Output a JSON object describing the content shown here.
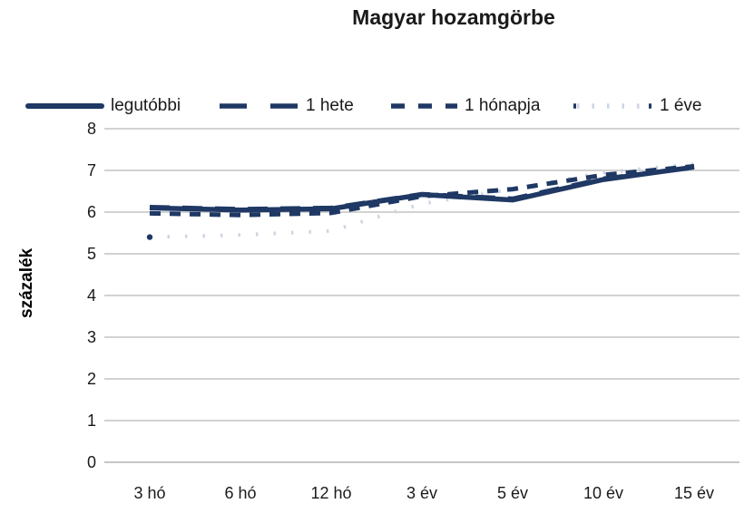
{
  "chart_data": {
    "type": "line",
    "title": "Magyar hozamgörbe",
    "ylabel": "százalék",
    "xlabel": "",
    "categories": [
      "3 hó",
      "6 hó",
      "12 hó",
      "3 év",
      "5 év",
      "10 év",
      "15 év"
    ],
    "y_ticks": [
      "8",
      "7",
      "6",
      "5",
      "4",
      "3",
      "2",
      "1",
      "0"
    ],
    "ylim": [
      0,
      8
    ],
    "grid": true,
    "legend_position": "top",
    "colors": {
      "line_navy": "#1f3864",
      "faint_line": "#cdd5e2",
      "gridline": "#d2d2d2",
      "axis_line": "#c6c6c6",
      "text": "#1a1a1a"
    },
    "series": [
      {
        "name": "legutóbbi",
        "line_style": "solid",
        "color": "#1f3864",
        "width": 5.5,
        "values": [
          6.1,
          6.05,
          6.08,
          6.42,
          6.29,
          6.78,
          7.08
        ]
      },
      {
        "name": "1 hete",
        "line_style": "long-dash",
        "color": "#1f3864",
        "width": 5,
        "values": [
          6.12,
          6.07,
          6.1,
          6.43,
          6.32,
          6.8,
          7.07
        ]
      },
      {
        "name": "1 hónapja",
        "line_style": "dash",
        "color": "#1f3864",
        "width": 5,
        "values": [
          5.97,
          5.93,
          5.98,
          6.38,
          6.55,
          6.89,
          7.1
        ]
      },
      {
        "name": "1 éve",
        "line_style": "dot",
        "color": "#cdd5e2",
        "end_dot_color": "#1f3864",
        "first_point_marker": true,
        "width": 4,
        "values": [
          5.4,
          5.45,
          5.55,
          6.2,
          6.55,
          6.95,
          7.15
        ]
      }
    ]
  }
}
